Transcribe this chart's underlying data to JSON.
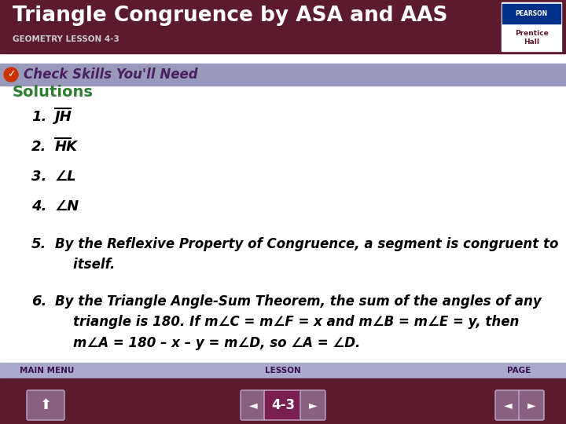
{
  "title": "Triangle Congruence by ASA and AAS",
  "subtitle": "GEOMETRY LESSON 4-3",
  "header_bg": "#5c1a2e",
  "header_text_color": "#ffffff",
  "subtitle_color": "#cccccc",
  "check_bar_bg": "#9999bb",
  "check_bar_text": "Check Skills You'll Need",
  "check_bar_text_color": "#4a2060",
  "solutions_label": "Solutions",
  "solutions_color": "#2e7d32",
  "items": [
    {
      "num": "1.",
      "text": "JH",
      "overline": true
    },
    {
      "num": "2.",
      "text": "HK",
      "overline": true
    },
    {
      "num": "3.",
      "text": "∠L",
      "overline": false
    },
    {
      "num": "4.",
      "text": "∠N",
      "overline": false
    },
    {
      "num": "5.",
      "text": "By the Reflexive Property of Congruence, a segment is congruent to\n    itself.",
      "overline": false
    },
    {
      "num": "6.",
      "text": "By the Triangle Angle-Sum Theorem, the sum of the angles of any\n    triangle is 180. If m∠C = m∠F = x and m∠B = m∠E = y, then\n    m∠A = 180 – x – y = m∠D, so ∠A = ∠D.",
      "overline": false
    }
  ],
  "footer_bg": "#5c1a2e",
  "footer_bar_bg": "#aaaacc",
  "footer_labels": [
    "MAIN MENU",
    "LESSON",
    "PAGE"
  ],
  "footer_lesson": "4-3",
  "body_bg": "#ffffff",
  "body_text_color": "#000000",
  "item_positions": [
    400,
    362,
    324,
    286,
    238,
    165
  ]
}
